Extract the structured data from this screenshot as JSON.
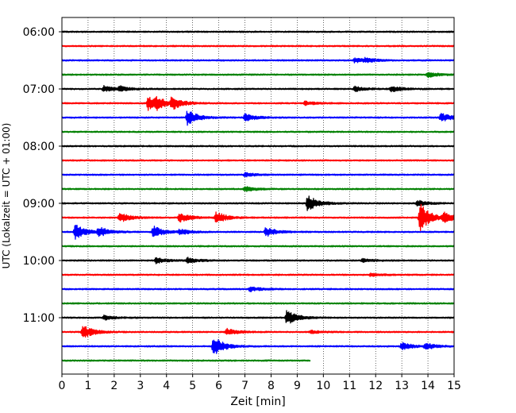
{
  "chart_data": {
    "type": "line",
    "title": "",
    "xlabel": "Zeit  [min]",
    "ylabel": "UTC (Lokalzeit = UTC + 01:00)",
    "xlim": [
      0,
      15
    ],
    "x_ticks": [
      "0",
      "1",
      "2",
      "3",
      "4",
      "5",
      "6",
      "7",
      "8",
      "9",
      "10",
      "11",
      "12",
      "13",
      "14",
      "15"
    ],
    "y_tick_labels": [
      "06:00",
      "07:00",
      "08:00",
      "09:00",
      "10:00",
      "11:00"
    ],
    "grid": "vertical dotted",
    "row_minutes": 15,
    "color_cycle": [
      "#000000",
      "#ff0000",
      "#0000ff",
      "#008000"
    ],
    "traces": [
      {
        "start": "06:00",
        "events": []
      },
      {
        "start": "06:15",
        "events": []
      },
      {
        "start": "06:30",
        "events": [
          {
            "t": 11.2,
            "amp": 0.5
          },
          {
            "t": 11.6,
            "amp": 0.4
          }
        ]
      },
      {
        "start": "06:45",
        "events": [
          {
            "t": 14.0,
            "amp": 0.5
          }
        ]
      },
      {
        "start": "07:00",
        "events": [
          {
            "t": 1.6,
            "amp": 0.6
          },
          {
            "t": 2.2,
            "amp": 0.5
          },
          {
            "t": 11.2,
            "amp": 0.5
          },
          {
            "t": 12.6,
            "amp": 0.6
          }
        ]
      },
      {
        "start": "07:15",
        "events": [
          {
            "t": 3.3,
            "amp": 1.4
          },
          {
            "t": 3.6,
            "amp": 1.0
          },
          {
            "t": 4.2,
            "amp": 1.2
          },
          {
            "t": 9.3,
            "amp": 0.4
          }
        ]
      },
      {
        "start": "07:30",
        "events": [
          {
            "t": 4.8,
            "amp": 1.6
          },
          {
            "t": 7.0,
            "amp": 0.8
          },
          {
            "t": 14.5,
            "amp": 0.9
          }
        ]
      },
      {
        "start": "07:45",
        "events": []
      },
      {
        "start": "08:00",
        "events": []
      },
      {
        "start": "08:15",
        "events": []
      },
      {
        "start": "08:30",
        "events": [
          {
            "t": 7.0,
            "amp": 0.4
          }
        ]
      },
      {
        "start": "08:45",
        "events": [
          {
            "t": 7.0,
            "amp": 0.5
          }
        ]
      },
      {
        "start": "09:00",
        "events": [
          {
            "t": 9.4,
            "amp": 1.7
          },
          {
            "t": 13.6,
            "amp": 0.6
          }
        ]
      },
      {
        "start": "09:15",
        "events": [
          {
            "t": 2.2,
            "amp": 1.0
          },
          {
            "t": 4.5,
            "amp": 1.0
          },
          {
            "t": 5.9,
            "amp": 1.2
          },
          {
            "t": 13.7,
            "amp": 3.0
          },
          {
            "t": 14.6,
            "amp": 1.0
          }
        ]
      },
      {
        "start": "09:30",
        "events": [
          {
            "t": 0.5,
            "amp": 1.6
          },
          {
            "t": 1.4,
            "amp": 1.0
          },
          {
            "t": 3.5,
            "amp": 1.3
          },
          {
            "t": 4.5,
            "amp": 0.6
          },
          {
            "t": 7.8,
            "amp": 1.0
          }
        ]
      },
      {
        "start": "09:45",
        "events": []
      },
      {
        "start": "10:00",
        "events": [
          {
            "t": 3.6,
            "amp": 0.6
          },
          {
            "t": 4.8,
            "amp": 0.6
          },
          {
            "t": 11.5,
            "amp": 0.3
          }
        ]
      },
      {
        "start": "10:15",
        "events": [
          {
            "t": 11.8,
            "amp": 0.3
          }
        ]
      },
      {
        "start": "10:30",
        "events": [
          {
            "t": 7.2,
            "amp": 0.5
          }
        ]
      },
      {
        "start": "10:45",
        "events": []
      },
      {
        "start": "11:00",
        "events": [
          {
            "t": 1.6,
            "amp": 0.5
          },
          {
            "t": 8.6,
            "amp": 1.6
          }
        ]
      },
      {
        "start": "11:15",
        "events": [
          {
            "t": 0.8,
            "amp": 1.5
          },
          {
            "t": 6.3,
            "amp": 0.7
          },
          {
            "t": 9.5,
            "amp": 0.3
          }
        ]
      },
      {
        "start": "11:30",
        "events": [
          {
            "t": 5.8,
            "amp": 2.0
          },
          {
            "t": 13.0,
            "amp": 0.8
          },
          {
            "t": 13.9,
            "amp": 0.7
          }
        ]
      },
      {
        "start": "11:45",
        "end_min": 9.5,
        "events": []
      }
    ]
  }
}
